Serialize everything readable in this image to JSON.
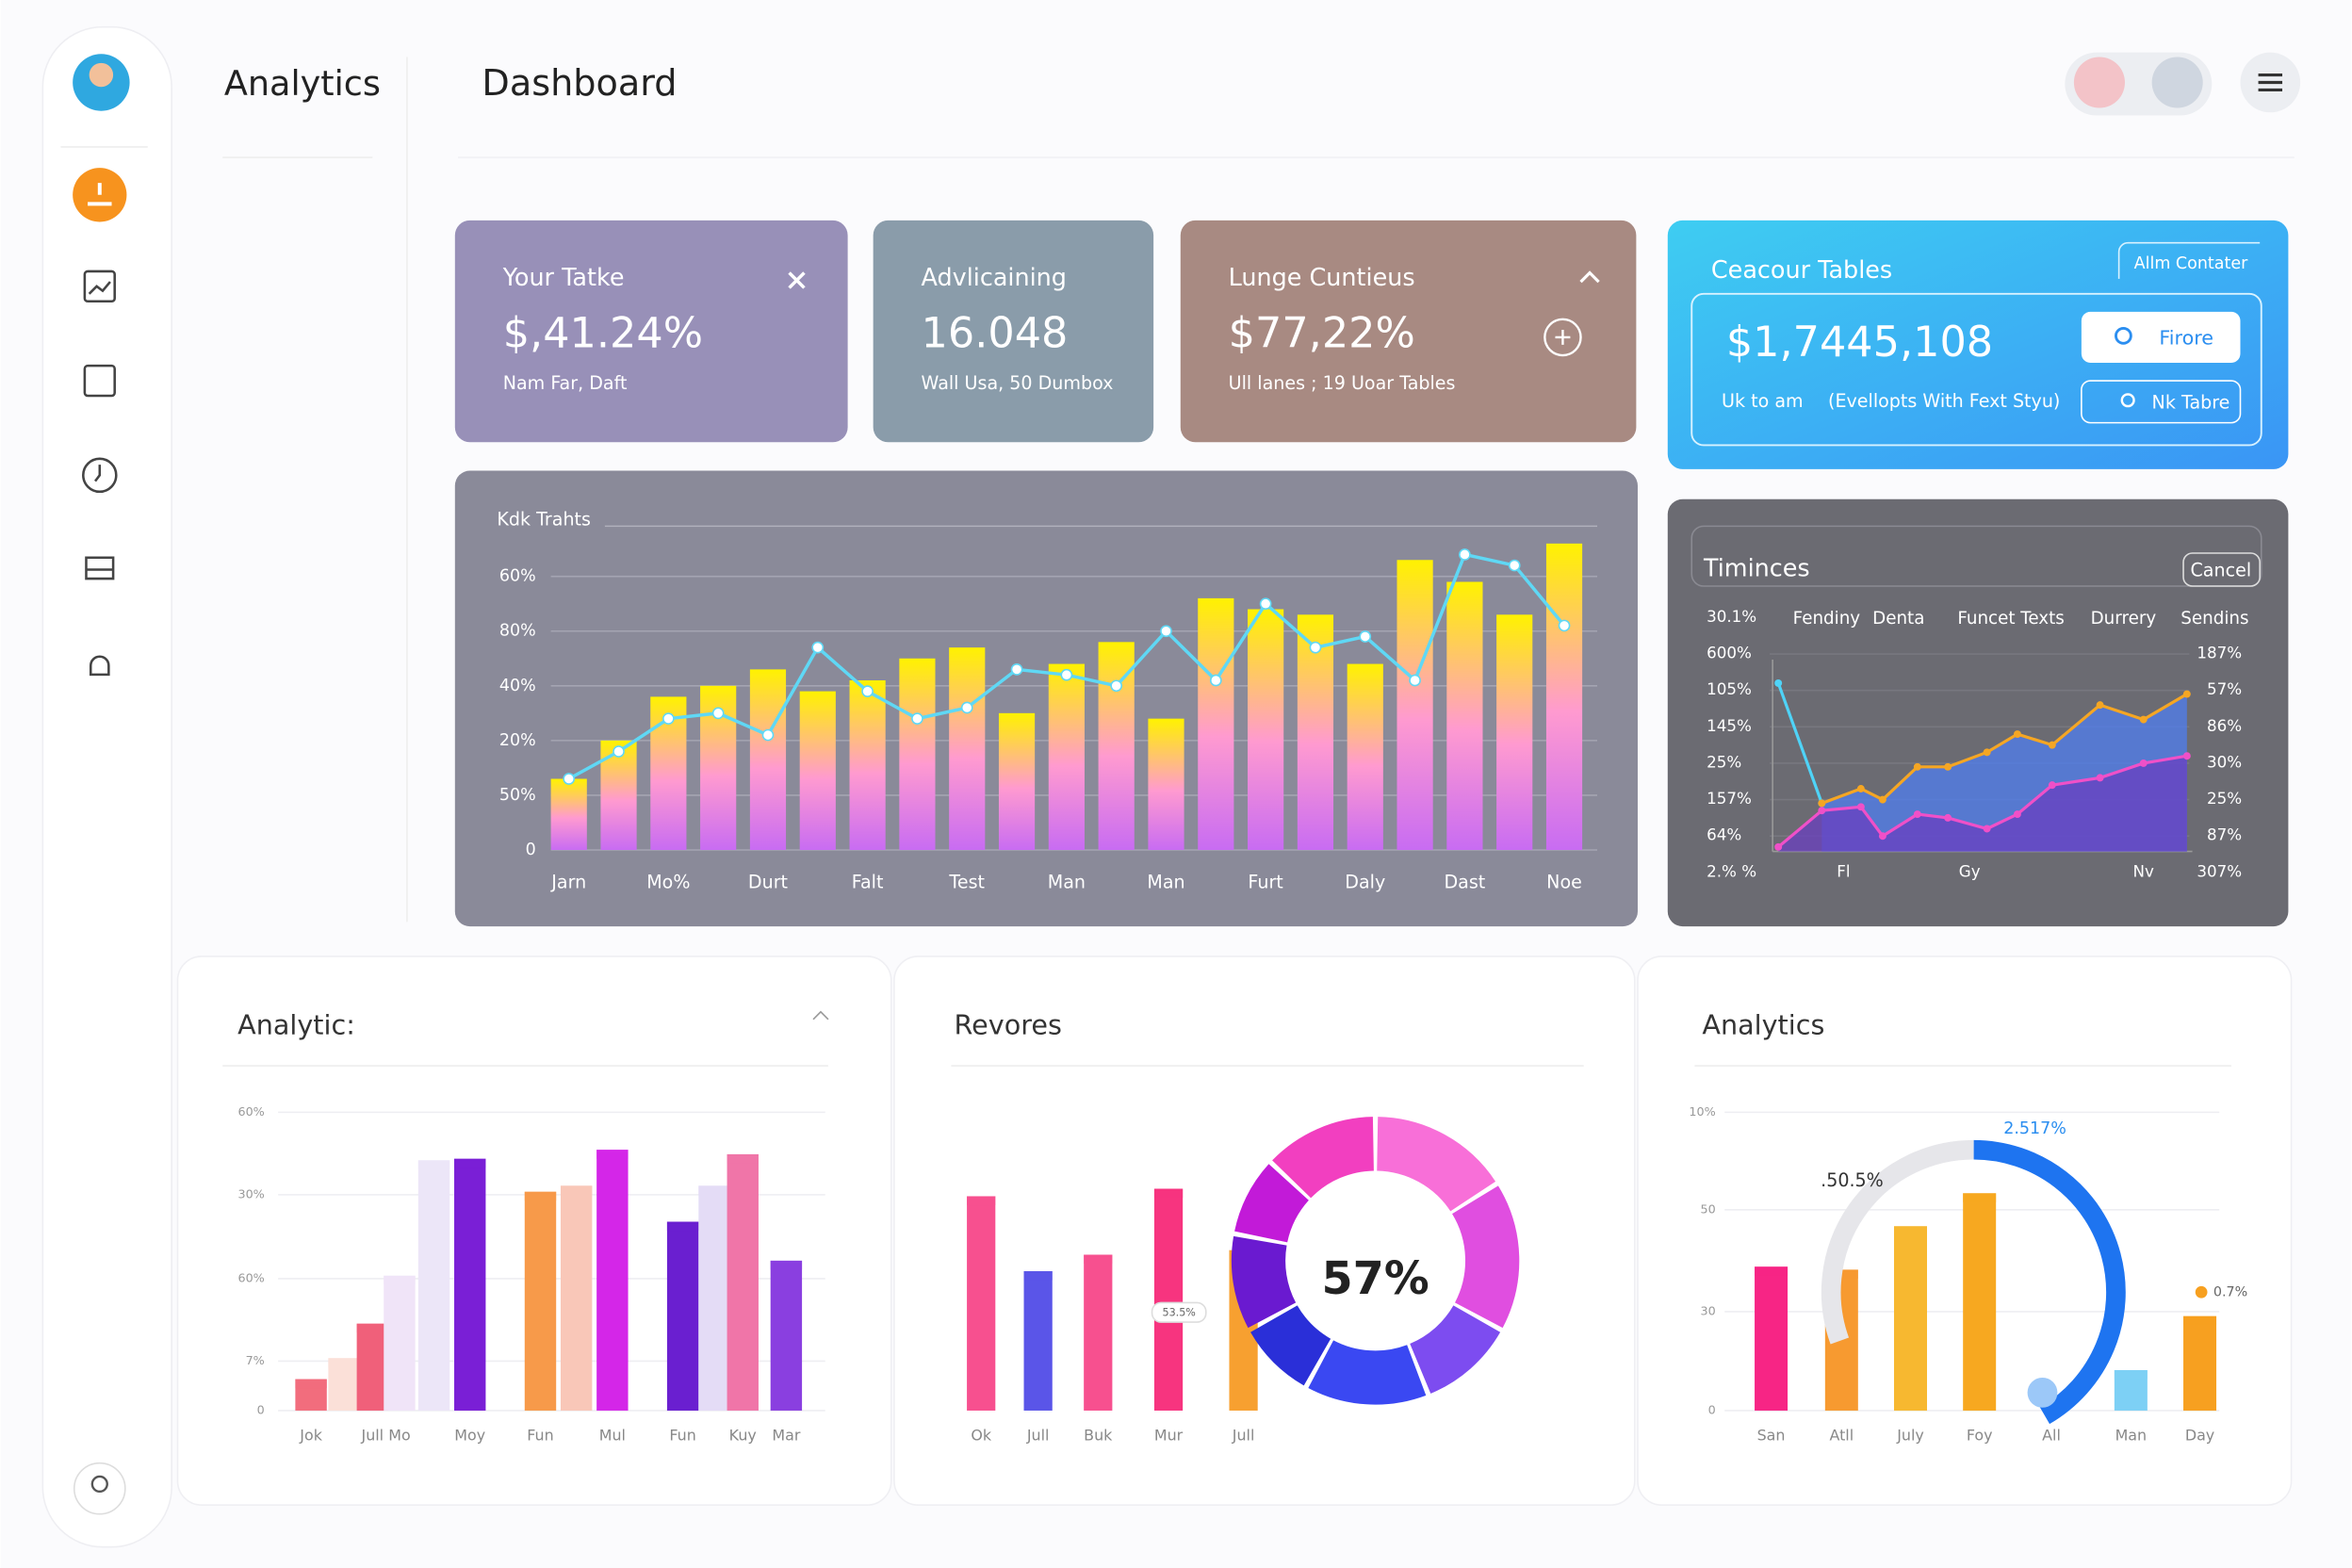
{
  "sidebar": {
    "title": "Analytics"
  },
  "header": {
    "title": "Dashboard"
  },
  "cards": [
    {
      "title": "Your Tatke",
      "value": "$,41.24%",
      "subtitle": "Nam Far, Daft",
      "color": "#9890b8"
    },
    {
      "title": "Advlicaining",
      "value": "16.048",
      "subtitle": "Wall Usa, 50 Dumbox",
      "color": "#8a9caa"
    },
    {
      "title": "Lunge Cuntieus",
      "value": "$77,22%",
      "subtitle": "Ull lanes ; 19 Uoar Tables",
      "color": "#a88a82"
    }
  ],
  "feature_card": {
    "title": "Ceacour Tables",
    "tag": "Allm Contater",
    "value": "$1,7445,108",
    "caption": "Uk to am",
    "note": "(Evellopts With Fext Styu)",
    "buttons": [
      "Firore",
      "Nk Tabre"
    ]
  },
  "chart_data": [
    {
      "type": "bar",
      "title": "Kdk Trahts",
      "categories": [
        "Jarn",
        null,
        "Mo%",
        null,
        "Durt",
        null,
        "Falt",
        null,
        "Test",
        null,
        "Man",
        null,
        "Man",
        null,
        "Furt",
        null,
        "Daly",
        null,
        "Dast",
        null,
        "Noe"
      ],
      "series": [
        {
          "type": "bar",
          "color": "#fff200",
          "values": [
            1.3,
            2.0,
            2.8,
            3.0,
            3.3,
            2.9,
            3.1,
            3.5,
            3.7,
            2.5,
            3.4,
            3.8,
            2.4,
            4.6,
            4.4,
            4.3,
            3.4,
            5.3,
            4.9,
            4.3,
            5.6
          ]
        },
        {
          "type": "line",
          "color": "#5fd8f5",
          "values": [
            1.3,
            1.8,
            2.4,
            2.5,
            2.1,
            3.7,
            2.9,
            2.4,
            2.6,
            3.3,
            3.2,
            3.0,
            4.0,
            3.1,
            4.5,
            3.7,
            3.9,
            3.1,
            5.4,
            5.2,
            4.1
          ]
        }
      ],
      "ylim": [
        0,
        6
      ],
      "yticks": [
        0,
        {
          "value": 1,
          "label": "50%"
        },
        {
          "value": 2,
          "label": "20%"
        },
        {
          "value": 3,
          "label": "40%"
        },
        {
          "value": 4,
          "label": "80%"
        },
        {
          "value": 5,
          "label": "60%"
        }
      ],
      "grid": true
    },
    {
      "type": "area",
      "title": "Timinces",
      "button": "Cancel",
      "columns": [
        "Fendiny",
        "Denta",
        "Funcet Texts",
        "Durrery",
        "Sendins"
      ],
      "x": [
        0.2,
        1.2,
        2.1,
        2.6,
        3.4,
        4.1,
        5.0,
        5.7,
        6.5,
        7.6,
        8.6,
        9.6
      ],
      "xlim": [
        0,
        10
      ],
      "xticks": [
        {
          "value": 1.7,
          "label": "Fl"
        },
        {
          "value": 4.6,
          "label": "Gy"
        },
        {
          "value": 8.6,
          "label": "Nv"
        }
      ],
      "series": [
        {
          "color": "#4fd3f7",
          "fill": null,
          "values": [
            5.2,
            1.9,
            null,
            null,
            null,
            null,
            null,
            null,
            null,
            null,
            null,
            null
          ]
        },
        {
          "color": "#f5a623",
          "fill": "#4f7ef0",
          "values": [
            null,
            1.9,
            2.3,
            2.0,
            2.9,
            2.9,
            3.3,
            3.8,
            3.5,
            4.6,
            4.2,
            4.9
          ]
        },
        {
          "color": "#f050c8",
          "fill": "#6a3fc0",
          "values": [
            0.7,
            1.7,
            1.8,
            1.0,
            1.6,
            1.5,
            1.2,
            1.6,
            2.4,
            2.6,
            3.0,
            3.2
          ]
        }
      ],
      "ylim": [
        0,
        7
      ],
      "yticks": [
        {
          "value": 0,
          "label": "2.% %"
        },
        {
          "value": 1,
          "label": "64%"
        },
        {
          "value": 2,
          "label": "157%"
        },
        {
          "value": 3,
          "label": "25%"
        },
        {
          "value": 4,
          "label": "145%"
        },
        {
          "value": 5,
          "label": "105%"
        },
        {
          "value": 6,
          "label": "600%"
        },
        {
          "value": 7,
          "label": "30.1%"
        }
      ],
      "y2lim": [
        0,
        7
      ],
      "y2ticks": [
        {
          "value": 0,
          "label": "307%"
        },
        {
          "value": 1,
          "label": "87%"
        },
        {
          "value": 2,
          "label": "25%"
        },
        {
          "value": 3,
          "label": "30%"
        },
        {
          "value": 4,
          "label": "86%"
        },
        {
          "value": 5,
          "label": "57%"
        },
        {
          "value": 6,
          "label": "187%"
        }
      ],
      "grid": true
    },
    {
      "type": "bar",
      "title": "Analytic:",
      "categories": [
        "Jok",
        null,
        "Jull",
        "Mo",
        null,
        "Moy",
        "Fun",
        null,
        "Mul",
        "Fun",
        null,
        "Kuy",
        "Mar"
      ],
      "values": [
        21,
        35,
        58,
        90,
        167,
        168,
        146,
        150,
        174,
        126,
        150,
        171,
        100
      ],
      "colors": [
        "#f26d7d",
        "#fbe0d8",
        "#f0607a",
        "#f0e4f8",
        "#ece6f8",
        "#7a1fd6",
        "#f79a4a",
        "#f9c7b8",
        "#d426e8",
        "#6a1fd0",
        "#e4dcf6",
        "#f075a8",
        "#8a3fe0"
      ],
      "ylim": [
        0,
        199
      ],
      "yticks": [
        0,
        {
          "value": 33,
          "label": "7%"
        },
        {
          "value": 88,
          "label": "60%"
        },
        {
          "value": 144,
          "label": "30%"
        },
        {
          "value": 199,
          "label": "60%"
        }
      ],
      "grid": true
    },
    {
      "type": "bar",
      "title": "Revores",
      "categories": [
        "Ok",
        "Jull",
        "Buk",
        "Mur",
        "Jull"
      ],
      "values": [
        143,
        93,
        104,
        148,
        107
      ],
      "colors": [
        "#f7508f",
        "#5a55e8",
        "#f7508f",
        "#f7347f",
        "#f7a030"
      ],
      "ylim": [
        0,
        199
      ],
      "annotation": "53.5%",
      "donut": {
        "label": "57%",
        "values": [
          16,
          17,
          11,
          14,
          9,
          11,
          9,
          13
        ],
        "colors": [
          "#f86fd8",
          "#e04ee0",
          "#7d4cf0",
          "#3a48f2",
          "#2a2fd8",
          "#6a1ad0",
          "#c21ad8",
          "#f23fc0"
        ]
      }
    },
    {
      "type": "bar",
      "title": "Analytics",
      "categories": [
        "San",
        "Atll",
        "July",
        "Foy",
        "All",
        "Man",
        "Day"
      ],
      "values": [
        96,
        94,
        123,
        145,
        null,
        27,
        63
      ],
      "colors": [
        "#f72585",
        "#f79a30",
        "#f7b830",
        "#f7a820",
        "#7ab8f5",
        "#7dd0f5",
        "#f7a020"
      ],
      "ylim": [
        0,
        199
      ],
      "yticks": [
        0,
        {
          "value": 66,
          "label": "30"
        },
        {
          "value": 134,
          "label": "50"
        },
        {
          "value": 199,
          "label": "10%"
        }
      ],
      "grid": true,
      "annotations": [
        "2.517%",
        ".50.5%",
        "0.7%"
      ]
    }
  ]
}
